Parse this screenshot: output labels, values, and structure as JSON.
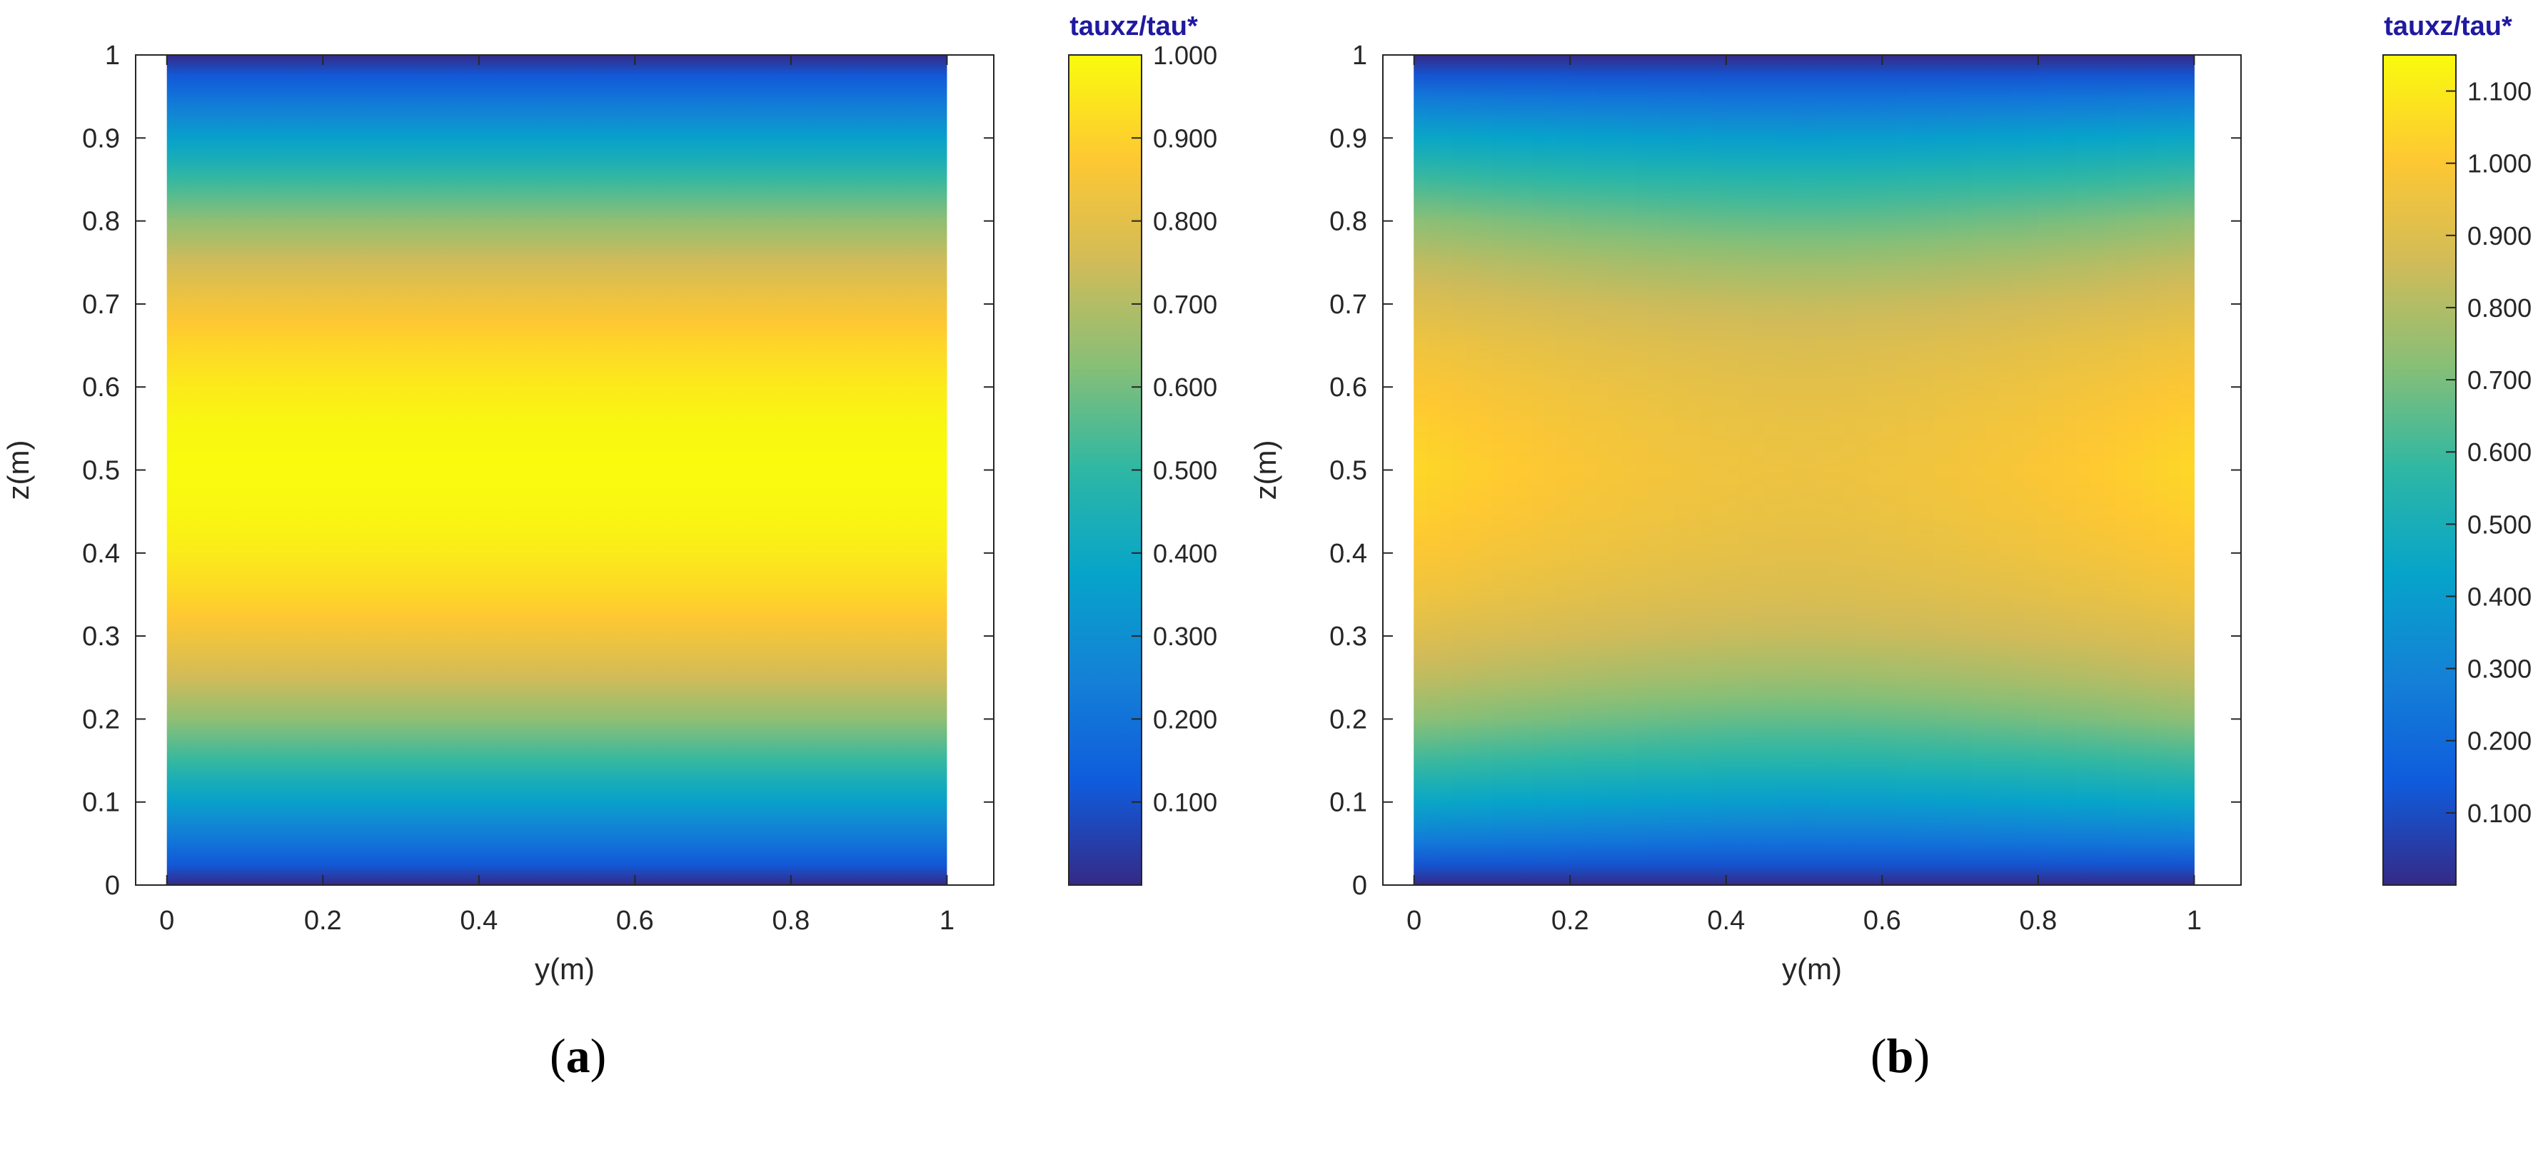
{
  "figure_labels": {
    "a": "a",
    "b": "b"
  },
  "colormap": [
    "#352a87",
    "#0f5cdd",
    "#1481d6",
    "#06a4ca",
    "#2eb7a4",
    "#87bf77",
    "#d1bb59",
    "#fec832",
    "#f9fb0e"
  ],
  "chart_data": [
    {
      "type": "heatmap",
      "panel": "a",
      "xlabel": "y(m)",
      "ylabel": "z(m)",
      "xlim": [
        -0.04,
        1.06
      ],
      "ylim": [
        0,
        1
      ],
      "xticks": [
        "0",
        "0.2",
        "0.4",
        "0.6",
        "0.8",
        "1"
      ],
      "xtick_values": [
        0,
        0.2,
        0.4,
        0.6,
        0.8,
        1
      ],
      "yticks": [
        "0",
        "0.1",
        "0.2",
        "0.3",
        "0.4",
        "0.5",
        "0.6",
        "0.7",
        "0.8",
        "0.9",
        "1"
      ],
      "ytick_values": [
        0,
        0.1,
        0.2,
        0.3,
        0.4,
        0.5,
        0.6,
        0.7,
        0.8,
        0.9,
        1
      ],
      "field": "tauxz/tau* varies with z only; ~0 at z=0 and z=1, max 1.0 at z=0.5",
      "field_y": [
        0.0,
        0.02,
        0.05,
        0.1,
        0.15,
        0.2,
        0.25,
        0.3,
        0.35,
        0.4,
        0.45,
        0.5
      ],
      "field_value": [
        0.0,
        0.1,
        0.2,
        0.36,
        0.51,
        0.64,
        0.75,
        0.84,
        0.91,
        0.96,
        0.99,
        1.0
      ],
      "colorbar": {
        "title": "tauxz/tau*",
        "range": [
          0,
          1.0
        ],
        "ticks": [
          "0.100",
          "0.200",
          "0.300",
          "0.400",
          "0.500",
          "0.600",
          "0.700",
          "0.800",
          "0.900",
          "1.000"
        ],
        "tick_values": [
          0.1,
          0.2,
          0.3,
          0.4,
          0.5,
          0.6,
          0.7,
          0.8,
          0.9,
          1.0
        ]
      }
    },
    {
      "type": "heatmap",
      "panel": "b",
      "xlabel": "y(m)",
      "ylabel": "z(m)",
      "xlim": [
        -0.04,
        1.06
      ],
      "ylim": [
        0,
        1
      ],
      "xticks": [
        "0",
        "0.2",
        "0.4",
        "0.6",
        "0.8",
        "1"
      ],
      "xtick_values": [
        0,
        0.2,
        0.4,
        0.6,
        0.8,
        1
      ],
      "yticks": [
        "0",
        "0.1",
        "0.2",
        "0.3",
        "0.4",
        "0.5",
        "0.6",
        "0.7",
        "0.8",
        "0.9",
        "1"
      ],
      "ytick_values": [
        0,
        0.1,
        0.2,
        0.3,
        0.4,
        0.5,
        0.6,
        0.7,
        0.8,
        0.9,
        1
      ],
      "field": "tauxz/tau* ~0 at z=0 and z=1; peaks ~1.05 near side walls (y=0, y=1) at z=0.5; ~0.95 at center",
      "field_y": [
        0.0,
        0.02,
        0.05,
        0.1,
        0.15,
        0.2,
        0.25,
        0.3,
        0.35,
        0.4,
        0.45,
        0.5
      ],
      "field_value_center": [
        0.0,
        0.1,
        0.22,
        0.4,
        0.55,
        0.66,
        0.76,
        0.84,
        0.89,
        0.92,
        0.94,
        0.95
      ],
      "field_value_wall": [
        0.0,
        0.1,
        0.25,
        0.45,
        0.6,
        0.73,
        0.83,
        0.9,
        0.96,
        1.0,
        1.03,
        1.05
      ],
      "colorbar": {
        "title": "tauxz/tau*",
        "range": [
          0,
          1.15
        ],
        "ticks": [
          "0.100",
          "0.200",
          "0.300",
          "0.400",
          "0.500",
          "0.600",
          "0.700",
          "0.800",
          "0.900",
          "1.000",
          "1.100"
        ],
        "tick_values": [
          0.1,
          0.2,
          0.3,
          0.4,
          0.5,
          0.6,
          0.7,
          0.8,
          0.9,
          1.0,
          1.1
        ]
      }
    }
  ]
}
